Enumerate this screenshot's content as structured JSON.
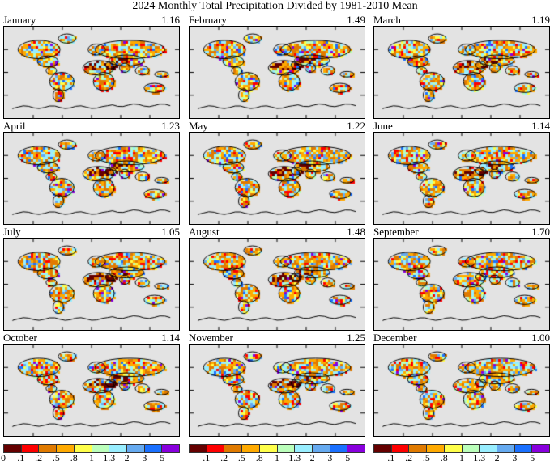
{
  "title": "2024 Monthly Total Precipitation Divided by 1981-2010 Mean",
  "panels": [
    {
      "month": "January",
      "value": "1.16"
    },
    {
      "month": "February",
      "value": "1.49"
    },
    {
      "month": "March",
      "value": "1.19"
    },
    {
      "month": "April",
      "value": "1.23"
    },
    {
      "month": "May",
      "value": "1.22"
    },
    {
      "month": "June",
      "value": "1.14"
    },
    {
      "month": "July",
      "value": "1.05"
    },
    {
      "month": "August",
      "value": "1.48"
    },
    {
      "month": "September",
      "value": "1.70"
    },
    {
      "month": "October",
      "value": "1.14"
    },
    {
      "month": "November",
      "value": "1.25"
    },
    {
      "month": "December",
      "value": "1.00"
    }
  ],
  "colorbar": {
    "colors": [
      "#650000",
      "#ff0000",
      "#e07a00",
      "#ffaa00",
      "#ffff4a",
      "#bbffbb",
      "#99eeff",
      "#66aaf0",
      "#1a70ff",
      "#8800dd"
    ],
    "labels_first": [
      "0",
      ".1",
      ".2",
      ".5",
      ".8",
      "1",
      "1.3",
      "2",
      "3",
      "5"
    ],
    "labels": [
      ".1",
      ".2",
      ".5",
      ".8",
      "1",
      "1.3",
      "2",
      "3",
      "5"
    ]
  },
  "ocean_color": "#e3e3e3"
}
